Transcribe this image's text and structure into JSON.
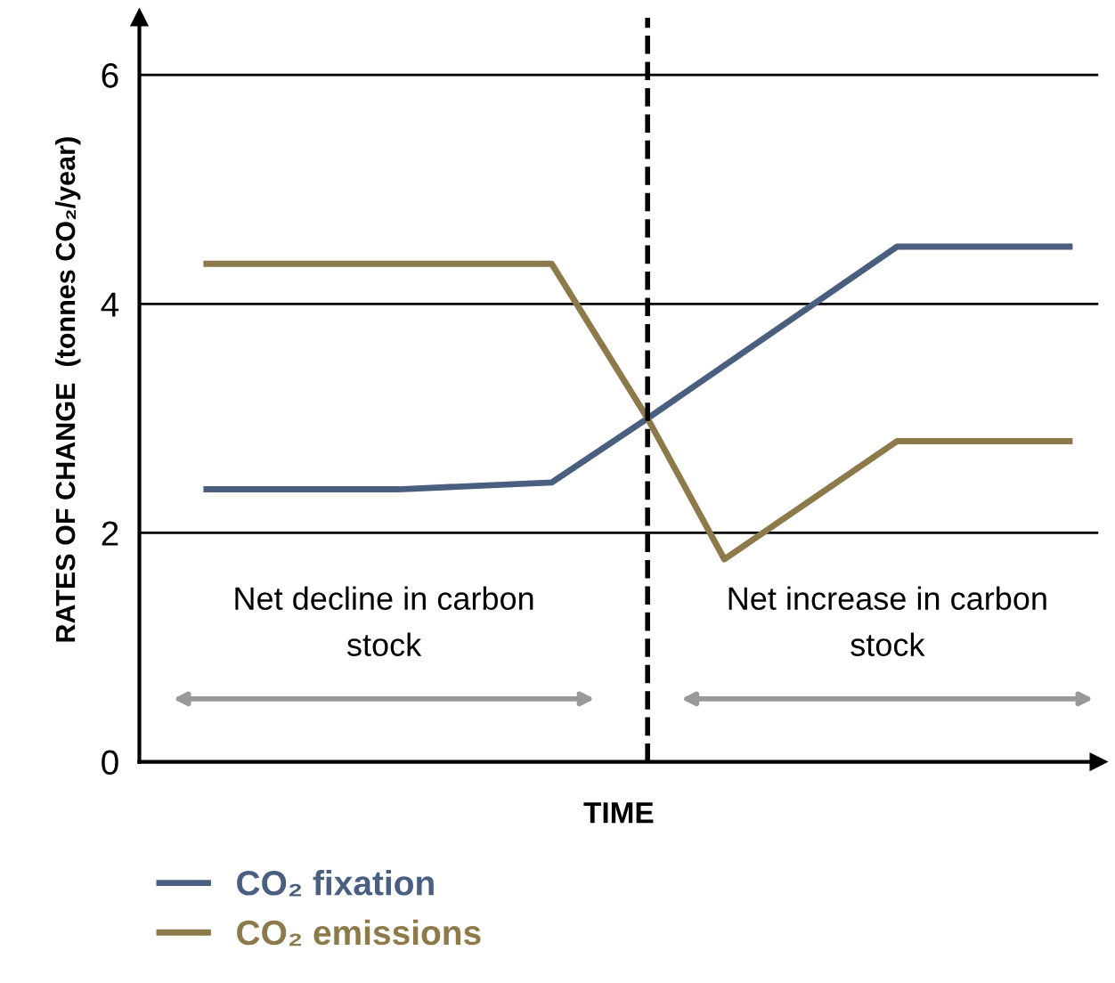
{
  "chart_data": {
    "type": "line",
    "xlabel": "TIME",
    "ylabel": "RATES OF CHANGE  (tonnes CO₂/year)",
    "categories": [
      null,
      null,
      null,
      null,
      null,
      null,
      null,
      null,
      null,
      null,
      null,
      null,
      null,
      null,
      null,
      null,
      null,
      null,
      null,
      null,
      null,
      null,
      null,
      null,
      null,
      null,
      null,
      null,
      null,
      null,
      null,
      null,
      null,
      null,
      null,
      null,
      null,
      null,
      null,
      null,
      null,
      null,
      null,
      null,
      null,
      null,
      null,
      null,
      null,
      null
    ],
    "ylim": [
      0,
      6.5
    ],
    "yticks": [
      0,
      2,
      4,
      6
    ],
    "tick_labels": "y",
    "grid": "y",
    "legend": "bottom left",
    "line_style": "solid",
    "series": [
      {
        "name": "CO₂ fixation",
        "color": "#4a5f80",
        "values": [
          null,
          null,
          null,
          2.38,
          null,
          null,
          null,
          null,
          null,
          null,
          null,
          null,
          null,
          2.38,
          null,
          null,
          null,
          null,
          null,
          null,
          null,
          2.44,
          null,
          null,
          null,
          null,
          3.0,
          null,
          null,
          null,
          null,
          null,
          null,
          null,
          null,
          null,
          null,
          null,
          null,
          4.5,
          null,
          null,
          null,
          null,
          null,
          null,
          null,
          null,
          4.5,
          null
        ]
      },
      {
        "name": "CO₂ emissions",
        "color": "#8c7a4b",
        "values": [
          null,
          null,
          null,
          4.35,
          null,
          null,
          null,
          null,
          null,
          null,
          null,
          null,
          null,
          4.35,
          null,
          null,
          null,
          null,
          null,
          null,
          null,
          4.35,
          null,
          null,
          null,
          null,
          3.0,
          null,
          null,
          null,
          1.77,
          null,
          null,
          null,
          null,
          null,
          null,
          null,
          null,
          2.8,
          null,
          null,
          null,
          null,
          null,
          null,
          null,
          null,
          2.8,
          null
        ]
      }
    ],
    "annotations": [
      "Net decline in carbon stock",
      "Net increase in carbon stock"
    ]
  }
}
